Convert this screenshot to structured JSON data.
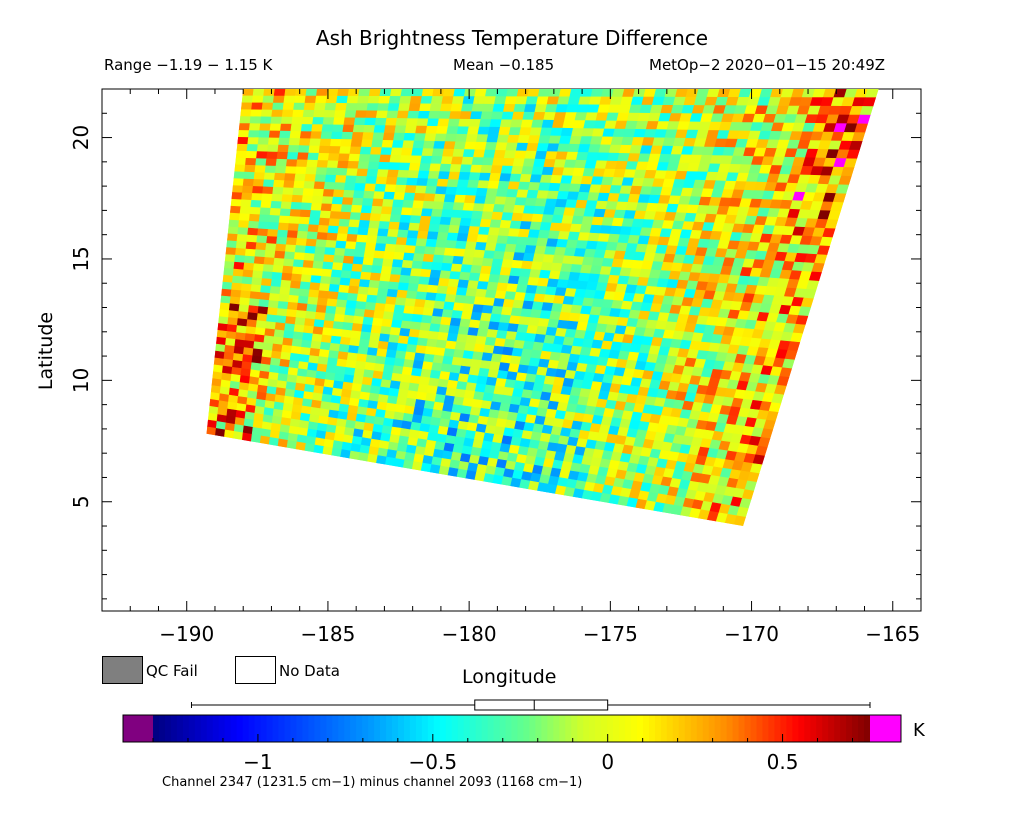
{
  "title": "Ash Brightness Temperature Difference",
  "stats": {
    "range": "Range −1.19 − 1.15 K",
    "mean": "Mean −0.185",
    "satellite": "MetOp−2 2020−01−15 20:49Z"
  },
  "legend": {
    "qc_fail": "QC Fail",
    "no_data": "No Data",
    "qc_fail_color": "#7f7f7f",
    "no_data_color": "#ffffff"
  },
  "chart_data": {
    "type": "heatmap",
    "title": "Ash Brightness Temperature Difference",
    "xlabel": "Longitude",
    "ylabel": "Latitude",
    "xlim": [
      -193,
      -164
    ],
    "ylim": [
      0.5,
      22
    ],
    "x_ticks": [
      -190,
      -185,
      -180,
      -175,
      -170,
      -165
    ],
    "x_tick_labels": [
      "−190",
      "−185",
      "−180",
      "−175",
      "−170",
      "−165"
    ],
    "y_ticks": [
      5,
      10,
      15,
      20
    ],
    "y_tick_labels": [
      "5",
      "10",
      "15",
      "20"
    ],
    "swath_corners_lonlat": [
      [
        -188,
        22
      ],
      [
        -165.5,
        22
      ],
      [
        -170.3,
        4
      ],
      [
        -189.3,
        7.8
      ]
    ],
    "value_range": [
      -1.19,
      1.15
    ],
    "mean": -0.185,
    "units": "K",
    "colorbar": {
      "min": -1.3,
      "max": 0.75,
      "ticks": [
        -1,
        -0.5,
        0,
        0.5
      ],
      "tick_labels": [
        "−1",
        "−0.5",
        "0",
        "0.5"
      ],
      "underflow_color": "#800080",
      "overflow_color": "#ff00ff",
      "units_label": "K",
      "box_whisker": {
        "min": -1.19,
        "q1": -0.38,
        "median": -0.21,
        "q3": 0.0,
        "max": 0.75
      }
    },
    "channel_label": "Channel 2347 (1231.5 cm−1) minus channel 2093 (1168 cm−1)"
  }
}
